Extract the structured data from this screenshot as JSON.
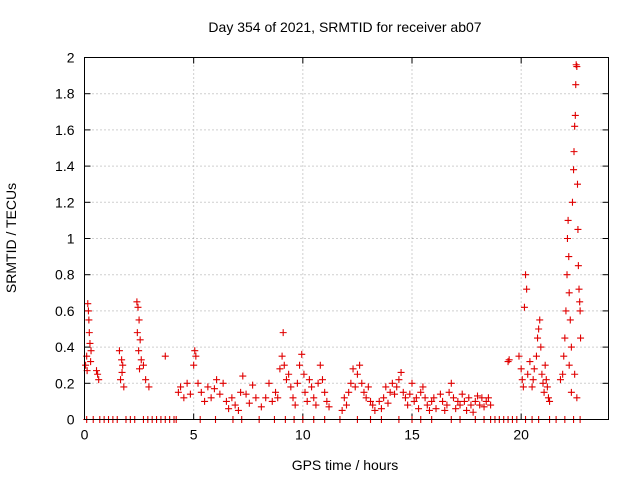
{
  "chart_data": {
    "type": "scatter",
    "title": "Day 354 of 2021, SRMTID for receiver ab07",
    "xlabel": "GPS time / hours",
    "ylabel": "SRMTID / TECUs",
    "xlim": [
      0,
      24
    ],
    "ylim": [
      0,
      2
    ],
    "x_ticks": [
      0,
      5,
      10,
      15,
      20
    ],
    "y_ticks": [
      0,
      0.2,
      0.4,
      0.6,
      0.8,
      1,
      1.2,
      1.4,
      1.6,
      1.8,
      2
    ],
    "x_tick_labels": [
      "0",
      "5",
      "10",
      "15",
      "20"
    ],
    "y_tick_labels": [
      "0",
      "0.2",
      "0.4",
      "0.6",
      "0.8",
      "1",
      "1.2",
      "1.4",
      "1.6",
      "1.8",
      "2"
    ],
    "grid": true,
    "marker": "plus",
    "color": "#e00000",
    "series": [
      {
        "name": "ab07",
        "points": [
          [
            0.05,
            0.3
          ],
          [
            0.1,
            0.35
          ],
          [
            0.15,
            0.64
          ],
          [
            0.2,
            0.55
          ],
          [
            0.22,
            0.48
          ],
          [
            0.25,
            0.42
          ],
          [
            0.3,
            0.38
          ],
          [
            0.12,
            0.27
          ],
          [
            0.18,
            0.6
          ],
          [
            0.28,
            0.32
          ],
          [
            0.55,
            0.27
          ],
          [
            0.6,
            0.25
          ],
          [
            0.65,
            0.22
          ],
          [
            1.6,
            0.38
          ],
          [
            1.7,
            0.33
          ],
          [
            1.75,
            0.3
          ],
          [
            1.65,
            0.22
          ],
          [
            1.8,
            0.18
          ],
          [
            1.72,
            0.26
          ],
          [
            2.4,
            0.65
          ],
          [
            2.45,
            0.62
          ],
          [
            2.5,
            0.55
          ],
          [
            2.42,
            0.48
          ],
          [
            2.55,
            0.44
          ],
          [
            2.48,
            0.38
          ],
          [
            2.52,
            0.28
          ],
          [
            2.6,
            0.33
          ],
          [
            2.7,
            0.3
          ],
          [
            2.8,
            0.22
          ],
          [
            2.95,
            0.18
          ],
          [
            3.7,
            0.35
          ],
          [
            4.3,
            0.15
          ],
          [
            4.4,
            0.18
          ],
          [
            4.55,
            0.12
          ],
          [
            4.7,
            0.2
          ],
          [
            4.85,
            0.14
          ],
          [
            5.0,
            0.3
          ],
          [
            5.05,
            0.38
          ],
          [
            5.1,
            0.35
          ],
          [
            5.2,
            0.2
          ],
          [
            5.35,
            0.15
          ],
          [
            5.5,
            0.1
          ],
          [
            5.65,
            0.18
          ],
          [
            5.8,
            0.12
          ],
          [
            5.95,
            0.17
          ],
          [
            6.05,
            0.22
          ],
          [
            6.2,
            0.14
          ],
          [
            6.35,
            0.2
          ],
          [
            6.5,
            0.1
          ],
          [
            6.6,
            0.06
          ],
          [
            6.75,
            0.12
          ],
          [
            6.9,
            0.08
          ],
          [
            7.05,
            0.05
          ],
          [
            7.15,
            0.15
          ],
          [
            7.25,
            0.24
          ],
          [
            7.4,
            0.14
          ],
          [
            7.55,
            0.09
          ],
          [
            7.7,
            0.19
          ],
          [
            7.85,
            0.12
          ],
          [
            8.1,
            0.07
          ],
          [
            8.3,
            0.12
          ],
          [
            8.45,
            0.2
          ],
          [
            8.6,
            0.1
          ],
          [
            8.75,
            0.15
          ],
          [
            8.85,
            0.12
          ],
          [
            8.95,
            0.28
          ],
          [
            9.05,
            0.35
          ],
          [
            9.1,
            0.48
          ],
          [
            9.15,
            0.3
          ],
          [
            9.25,
            0.22
          ],
          [
            9.35,
            0.25
          ],
          [
            9.45,
            0.18
          ],
          [
            9.55,
            0.12
          ],
          [
            9.65,
            0.08
          ],
          [
            9.75,
            0.2
          ],
          [
            9.85,
            0.3
          ],
          [
            9.95,
            0.36
          ],
          [
            10.05,
            0.25
          ],
          [
            10.1,
            0.15
          ],
          [
            10.2,
            0.1
          ],
          [
            10.3,
            0.22
          ],
          [
            10.4,
            0.18
          ],
          [
            10.5,
            0.12
          ],
          [
            10.6,
            0.08
          ],
          [
            10.7,
            0.2
          ],
          [
            10.8,
            0.3
          ],
          [
            10.9,
            0.22
          ],
          [
            11.0,
            0.15
          ],
          [
            11.1,
            0.1
          ],
          [
            11.2,
            0.07
          ],
          [
            11.8,
            0.05
          ],
          [
            11.9,
            0.12
          ],
          [
            12.0,
            0.08
          ],
          [
            12.1,
            0.15
          ],
          [
            12.2,
            0.2
          ],
          [
            12.3,
            0.28
          ],
          [
            12.4,
            0.18
          ],
          [
            12.5,
            0.25
          ],
          [
            12.6,
            0.3
          ],
          [
            12.7,
            0.2
          ],
          [
            12.8,
            0.15
          ],
          [
            12.9,
            0.12
          ],
          [
            13.0,
            0.18
          ],
          [
            13.1,
            0.1
          ],
          [
            13.2,
            0.08
          ],
          [
            13.3,
            0.05
          ],
          [
            13.5,
            0.1
          ],
          [
            13.6,
            0.06
          ],
          [
            13.7,
            0.12
          ],
          [
            13.8,
            0.18
          ],
          [
            13.9,
            0.09
          ],
          [
            14.0,
            0.15
          ],
          [
            14.1,
            0.2
          ],
          [
            14.2,
            0.14
          ],
          [
            14.3,
            0.18
          ],
          [
            14.4,
            0.22
          ],
          [
            14.5,
            0.26
          ],
          [
            14.6,
            0.15
          ],
          [
            14.7,
            0.12
          ],
          [
            14.8,
            0.08
          ],
          [
            14.9,
            0.14
          ],
          [
            15.0,
            0.2
          ],
          [
            15.1,
            0.1
          ],
          [
            15.2,
            0.12
          ],
          [
            15.3,
            0.06
          ],
          [
            15.4,
            0.15
          ],
          [
            15.5,
            0.18
          ],
          [
            15.6,
            0.12
          ],
          [
            15.7,
            0.08
          ],
          [
            15.8,
            0.05
          ],
          [
            15.9,
            0.1
          ],
          [
            16.0,
            0.12
          ],
          [
            16.1,
            0.06
          ],
          [
            16.3,
            0.14
          ],
          [
            16.4,
            0.1
          ],
          [
            16.5,
            0.05
          ],
          [
            16.6,
            0.08
          ],
          [
            16.7,
            0.15
          ],
          [
            16.8,
            0.2
          ],
          [
            16.9,
            0.12
          ],
          [
            17.0,
            0.06
          ],
          [
            17.1,
            0.1
          ],
          [
            17.2,
            0.08
          ],
          [
            17.3,
            0.14
          ],
          [
            17.4,
            0.1
          ],
          [
            17.5,
            0.05
          ],
          [
            17.6,
            0.12
          ],
          [
            17.7,
            0.08
          ],
          [
            17.8,
            0.04
          ],
          [
            17.9,
            0.1
          ],
          [
            18.0,
            0.13
          ],
          [
            18.1,
            0.08
          ],
          [
            18.2,
            0.12
          ],
          [
            18.3,
            0.07
          ],
          [
            18.4,
            0.1
          ],
          [
            18.5,
            0.12
          ],
          [
            18.6,
            0.08
          ],
          [
            19.4,
            0.32
          ],
          [
            19.45,
            0.33
          ],
          [
            19.9,
            0.35
          ],
          [
            20.0,
            0.28
          ],
          [
            20.05,
            0.22
          ],
          [
            20.1,
            0.18
          ],
          [
            20.15,
            0.62
          ],
          [
            20.2,
            0.8
          ],
          [
            20.25,
            0.72
          ],
          [
            20.3,
            0.25
          ],
          [
            20.4,
            0.32
          ],
          [
            20.5,
            0.18
          ],
          [
            20.55,
            0.22
          ],
          [
            20.6,
            0.28
          ],
          [
            20.7,
            0.35
          ],
          [
            20.75,
            0.45
          ],
          [
            20.8,
            0.5
          ],
          [
            20.85,
            0.55
          ],
          [
            20.9,
            0.4
          ],
          [
            20.95,
            0.25
          ],
          [
            21.0,
            0.2
          ],
          [
            21.05,
            0.15
          ],
          [
            21.1,
            0.3
          ],
          [
            21.15,
            0.22
          ],
          [
            21.2,
            0.18
          ],
          [
            21.25,
            0.12
          ],
          [
            21.3,
            0.1
          ],
          [
            21.8,
            0.22
          ],
          [
            21.9,
            0.25
          ],
          [
            21.95,
            0.35
          ],
          [
            22.0,
            0.45
          ],
          [
            22.05,
            0.6
          ],
          [
            22.1,
            0.8
          ],
          [
            22.12,
            1.0
          ],
          [
            22.15,
            1.1
          ],
          [
            22.18,
            0.9
          ],
          [
            22.2,
            0.7
          ],
          [
            22.25,
            0.55
          ],
          [
            22.3,
            0.4
          ],
          [
            22.35,
            1.2
          ],
          [
            22.4,
            1.38
          ],
          [
            22.42,
            1.48
          ],
          [
            22.45,
            1.62
          ],
          [
            22.48,
            1.68
          ],
          [
            22.5,
            1.85
          ],
          [
            22.52,
            1.96
          ],
          [
            22.55,
            1.95
          ],
          [
            22.58,
            1.3
          ],
          [
            22.6,
            1.05
          ],
          [
            22.62,
            0.85
          ],
          [
            22.65,
            0.72
          ],
          [
            22.68,
            0.65
          ],
          [
            22.7,
            0.6
          ],
          [
            22.72,
            0.45
          ],
          [
            22.3,
            0.15
          ],
          [
            22.2,
            0.3
          ],
          [
            22.45,
            0.25
          ],
          [
            22.55,
            0.12
          ],
          [
            0.1,
            0
          ],
          [
            0.4,
            0
          ],
          [
            0.7,
            0
          ],
          [
            0.9,
            0
          ],
          [
            1.1,
            0
          ],
          [
            1.3,
            0
          ],
          [
            1.5,
            0
          ],
          [
            1.9,
            0
          ],
          [
            2.1,
            0
          ],
          [
            2.3,
            0
          ],
          [
            2.7,
            0
          ],
          [
            2.9,
            0
          ],
          [
            3.1,
            0
          ],
          [
            3.3,
            0
          ],
          [
            3.5,
            0
          ],
          [
            3.7,
            0
          ],
          [
            3.9,
            0
          ],
          [
            4.1,
            0
          ],
          [
            4.2,
            0
          ],
          [
            5.3,
            0
          ],
          [
            6.0,
            0
          ],
          [
            6.8,
            0
          ],
          [
            7.2,
            0
          ],
          [
            8.0,
            0
          ],
          [
            8.7,
            0
          ],
          [
            9.2,
            0
          ],
          [
            9.6,
            0
          ],
          [
            10.0,
            0
          ],
          [
            10.5,
            0
          ],
          [
            11.0,
            0
          ],
          [
            11.7,
            0
          ],
          [
            12.5,
            0
          ],
          [
            13.1,
            0
          ],
          [
            13.6,
            0
          ],
          [
            14.4,
            0
          ],
          [
            15.0,
            0
          ],
          [
            15.4,
            0
          ],
          [
            15.9,
            0
          ],
          [
            16.8,
            0
          ],
          [
            17.2,
            0
          ],
          [
            17.9,
            0
          ],
          [
            18.3,
            0
          ],
          [
            18.6,
            0
          ],
          [
            18.8,
            0
          ],
          [
            19.0,
            0
          ],
          [
            19.2,
            0
          ],
          [
            19.4,
            0
          ],
          [
            19.6,
            0
          ],
          [
            19.8,
            0
          ],
          [
            20.2,
            0
          ],
          [
            20.5,
            0
          ],
          [
            20.8,
            0
          ],
          [
            21.3,
            0
          ],
          [
            21.6,
            0
          ],
          [
            22.0,
            0
          ],
          [
            22.4,
            0
          ],
          [
            22.7,
            0
          ]
        ]
      }
    ]
  }
}
